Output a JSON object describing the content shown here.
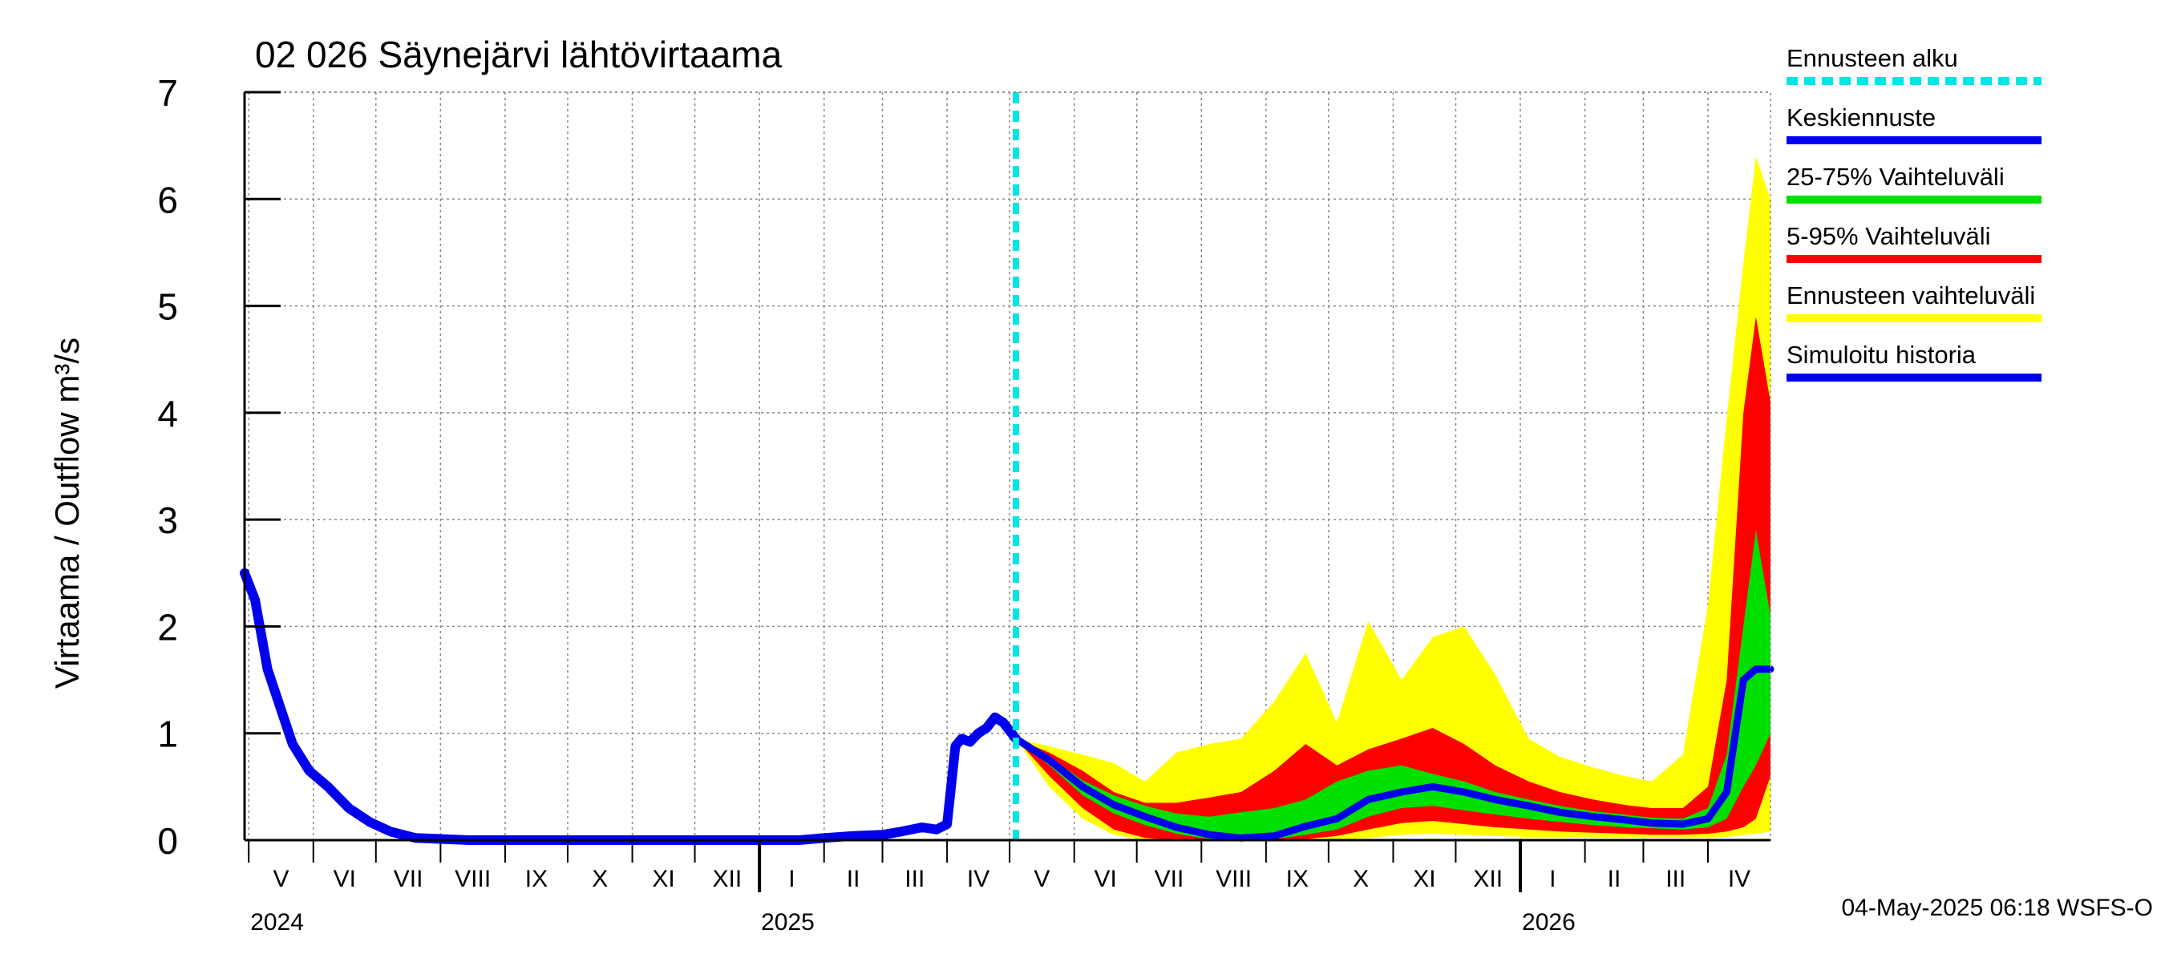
{
  "chart_data": {
    "type": "area",
    "title": "02 026 Säynejärvi lähtövirtaama",
    "ylabel": "Virtaama / Outflow    m³/s",
    "xlabel": "",
    "ylim": [
      0,
      7
    ],
    "yticks": [
      "0",
      "1",
      "2",
      "3",
      "4",
      "5",
      "6",
      "7"
    ],
    "x_range": [
      "2024-04-29",
      "2026-05-01"
    ],
    "grid": true,
    "legend_position": "right",
    "timestamp": "04-May-2025 06:18 WSFS-O",
    "forecast_start": "2025-05-04",
    "months": [
      {
        "label": "V",
        "date": "2024-05-01"
      },
      {
        "label": "VI",
        "date": "2024-06-01"
      },
      {
        "label": "VII",
        "date": "2024-07-01"
      },
      {
        "label": "VIII",
        "date": "2024-08-01"
      },
      {
        "label": "IX",
        "date": "2024-09-01"
      },
      {
        "label": "X",
        "date": "2024-10-01"
      },
      {
        "label": "XI",
        "date": "2024-11-01"
      },
      {
        "label": "XII",
        "date": "2024-12-01"
      },
      {
        "label": "I",
        "date": "2025-01-01"
      },
      {
        "label": "II",
        "date": "2025-02-01"
      },
      {
        "label": "III",
        "date": "2025-03-01"
      },
      {
        "label": "IV",
        "date": "2025-04-01"
      },
      {
        "label": "V",
        "date": "2025-05-01"
      },
      {
        "label": "VI",
        "date": "2025-06-01"
      },
      {
        "label": "VII",
        "date": "2025-07-01"
      },
      {
        "label": "VIII",
        "date": "2025-08-01"
      },
      {
        "label": "IX",
        "date": "2025-09-01"
      },
      {
        "label": "X",
        "date": "2025-10-01"
      },
      {
        "label": "XI",
        "date": "2025-11-01"
      },
      {
        "label": "XII",
        "date": "2025-12-01"
      },
      {
        "label": "I",
        "date": "2026-01-01"
      },
      {
        "label": "II",
        "date": "2026-02-01"
      },
      {
        "label": "III",
        "date": "2026-03-01"
      },
      {
        "label": "IV",
        "date": "2026-04-01"
      }
    ],
    "years": [
      {
        "label": "2024",
        "date": "2024-05-01"
      },
      {
        "label": "2025",
        "date": "2025-01-01"
      },
      {
        "label": "2026",
        "date": "2026-01-01"
      }
    ],
    "legend": [
      {
        "label": "Ennusteen alku",
        "color": "#00e5e5",
        "style": "dashed"
      },
      {
        "label": "Keskiennuste",
        "color": "#0000ee",
        "style": "solid"
      },
      {
        "label": "25-75% Vaihteluväli",
        "color": "#00e000",
        "style": "solid"
      },
      {
        "label": "5-95% Vaihteluväli",
        "color": "#ff0000",
        "style": "solid"
      },
      {
        "label": "Ennusteen vaihteluväli",
        "color": "#ffff00",
        "style": "solid"
      },
      {
        "label": "Simuloitu historia",
        "color": "#0000ee",
        "style": "solid"
      }
    ],
    "history": {
      "x": [
        "2024-04-29",
        "2024-05-04",
        "2024-05-10",
        "2024-05-16",
        "2024-05-22",
        "2024-05-30",
        "2024-06-08",
        "2024-06-18",
        "2024-06-28",
        "2024-07-08",
        "2024-07-20",
        "2024-08-15",
        "2024-09-15",
        "2024-10-15",
        "2024-11-15",
        "2024-12-15",
        "2025-01-10",
        "2025-01-20",
        "2025-02-01",
        "2025-02-15",
        "2025-03-01",
        "2025-03-10",
        "2025-03-20",
        "2025-03-27",
        "2025-04-01",
        "2025-04-05",
        "2025-04-08",
        "2025-04-12",
        "2025-04-16",
        "2025-04-20",
        "2025-04-24",
        "2025-04-28",
        "2025-05-04"
      ],
      "y": [
        2.5,
        2.25,
        1.6,
        1.25,
        0.9,
        0.65,
        0.5,
        0.3,
        0.17,
        0.08,
        0.02,
        0.0,
        0.0,
        0.0,
        0.0,
        0.0,
        0.0,
        0.0,
        0.02,
        0.04,
        0.05,
        0.08,
        0.12,
        0.1,
        0.15,
        0.88,
        0.95,
        0.92,
        1.0,
        1.05,
        1.15,
        1.1,
        0.95
      ]
    },
    "forecast": {
      "x": [
        "2025-05-04",
        "2025-05-20",
        "2025-06-05",
        "2025-06-20",
        "2025-07-05",
        "2025-07-20",
        "2025-08-05",
        "2025-08-20",
        "2025-09-05",
        "2025-09-20",
        "2025-10-05",
        "2025-10-20",
        "2025-11-05",
        "2025-11-20",
        "2025-12-05",
        "2025-12-20",
        "2026-01-05",
        "2026-01-20",
        "2026-02-05",
        "2026-02-20",
        "2026-03-05",
        "2026-03-20",
        "2026-04-01",
        "2026-04-10",
        "2026-04-18",
        "2026-04-24",
        "2026-05-01"
      ],
      "median": [
        0.95,
        0.75,
        0.5,
        0.33,
        0.22,
        0.12,
        0.05,
        0.02,
        0.04,
        0.13,
        0.2,
        0.38,
        0.45,
        0.5,
        0.45,
        0.38,
        0.32,
        0.26,
        0.22,
        0.19,
        0.16,
        0.15,
        0.2,
        0.45,
        1.5,
        1.6,
        1.6
      ],
      "p25": [
        0.95,
        0.7,
        0.42,
        0.25,
        0.14,
        0.06,
        0.01,
        0.0,
        0.01,
        0.05,
        0.1,
        0.22,
        0.3,
        0.32,
        0.28,
        0.24,
        0.2,
        0.17,
        0.14,
        0.12,
        0.11,
        0.1,
        0.12,
        0.2,
        0.5,
        0.7,
        1.0
      ],
      "p75": [
        0.95,
        0.78,
        0.56,
        0.42,
        0.32,
        0.25,
        0.22,
        0.26,
        0.3,
        0.38,
        0.55,
        0.65,
        0.7,
        0.62,
        0.55,
        0.45,
        0.38,
        0.32,
        0.27,
        0.24,
        0.21,
        0.2,
        0.3,
        0.8,
        2.0,
        2.9,
        2.1
      ],
      "p05": [
        0.95,
        0.6,
        0.3,
        0.1,
        0.02,
        0.0,
        0.0,
        0.0,
        0.0,
        0.01,
        0.04,
        0.1,
        0.16,
        0.18,
        0.15,
        0.12,
        0.1,
        0.08,
        0.07,
        0.06,
        0.05,
        0.05,
        0.06,
        0.08,
        0.12,
        0.2,
        0.6
      ],
      "p95": [
        0.95,
        0.82,
        0.65,
        0.45,
        0.35,
        0.35,
        0.4,
        0.45,
        0.65,
        0.9,
        0.7,
        0.85,
        0.95,
        1.05,
        0.9,
        0.7,
        0.55,
        0.45,
        0.38,
        0.33,
        0.3,
        0.3,
        0.5,
        1.5,
        4.0,
        4.9,
        4.1
      ],
      "min": [
        0.95,
        0.5,
        0.2,
        0.05,
        0.0,
        0.0,
        0.0,
        0.0,
        0.0,
        0.0,
        0.0,
        0.02,
        0.05,
        0.06,
        0.05,
        0.04,
        0.03,
        0.03,
        0.02,
        0.02,
        0.02,
        0.02,
        0.02,
        0.03,
        0.05,
        0.06,
        0.08
      ],
      "max": [
        0.95,
        0.88,
        0.8,
        0.72,
        0.55,
        0.82,
        0.9,
        0.95,
        1.3,
        1.75,
        1.1,
        2.05,
        1.5,
        1.9,
        2.0,
        1.55,
        0.95,
        0.78,
        0.68,
        0.6,
        0.55,
        0.8,
        2.2,
        3.95,
        5.4,
        6.4,
        6.0
      ]
    }
  }
}
